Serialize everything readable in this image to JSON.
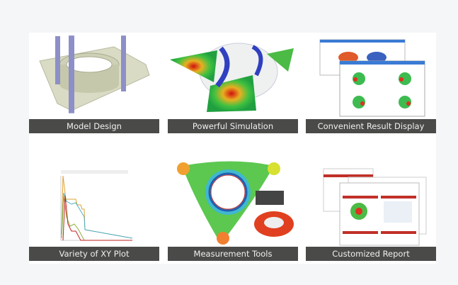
{
  "features": [
    {
      "label": "Model Design",
      "icon": "model-design-image"
    },
    {
      "label": "Powerful Simulation",
      "icon": "simulation-image"
    },
    {
      "label": "Convenient Result Display",
      "icon": "result-display-image"
    },
    {
      "label": "Variety of XY Plot",
      "icon": "xy-plot-image"
    },
    {
      "label": "Measurement Tools",
      "icon": "measurement-tools-image"
    },
    {
      "label": "Customized Report",
      "icon": "customized-report-image"
    }
  ],
  "colors": {
    "caption_bg": "#4a4a49",
    "caption_text": "#f0f0f0",
    "page_bg": "#f4f6f8"
  }
}
